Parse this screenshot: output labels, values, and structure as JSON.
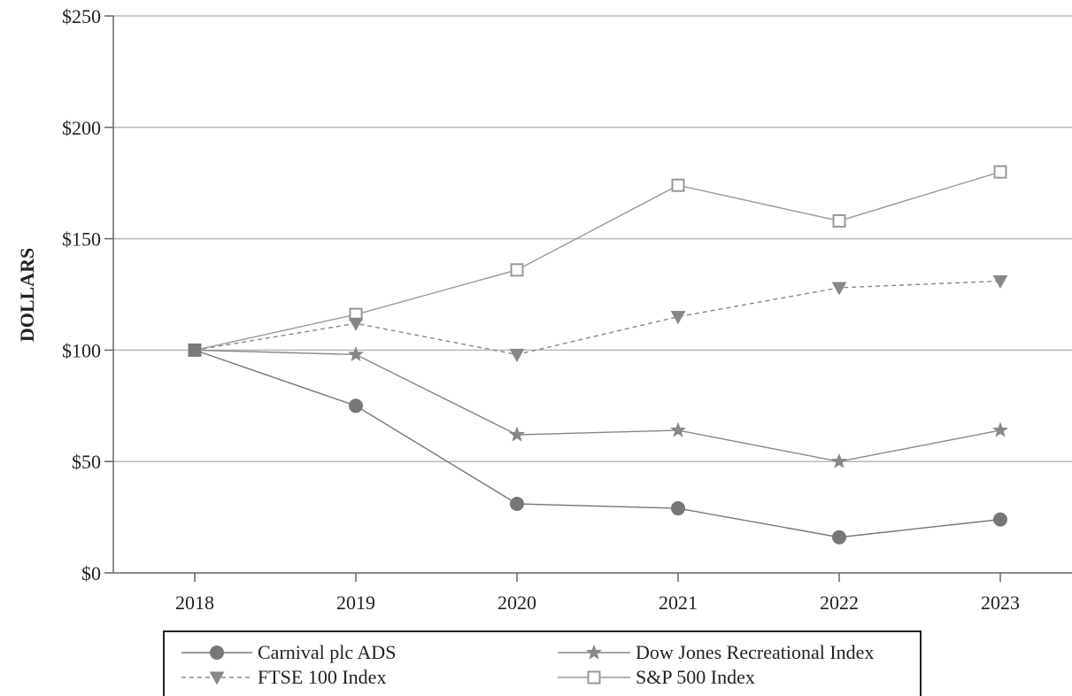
{
  "chart_data": {
    "type": "line",
    "title": "",
    "xlabel": "",
    "ylabel": "DOLLARS",
    "categories": [
      "2018",
      "2019",
      "2020",
      "2021",
      "2022",
      "2023"
    ],
    "ylim": [
      0,
      250
    ],
    "yticks": [
      0,
      50,
      100,
      150,
      200,
      250
    ],
    "ytick_labels": [
      "$0",
      "$50",
      "$100",
      "$150",
      "$200",
      "$250"
    ],
    "grid": true,
    "legend_position": "bottom",
    "series": [
      {
        "name": "Carnival plc ADS",
        "values": [
          100,
          75,
          31,
          29,
          16,
          24
        ],
        "marker": "circle",
        "dash": "solid",
        "color": "#777777"
      },
      {
        "name": "Dow Jones Recreational Index",
        "values": [
          100,
          98,
          62,
          64,
          50,
          64
        ],
        "marker": "star",
        "dash": "solid",
        "color": "#888888"
      },
      {
        "name": "FTSE 100 Index",
        "values": [
          100,
          112,
          98,
          115,
          128,
          131
        ],
        "marker": "triangle-down",
        "dash": "dashed",
        "color": "#888888"
      },
      {
        "name": "S&P 500 Index",
        "values": [
          100,
          116,
          136,
          174,
          158,
          180
        ],
        "marker": "square-open",
        "dash": "solid",
        "color": "#999999"
      }
    ]
  }
}
